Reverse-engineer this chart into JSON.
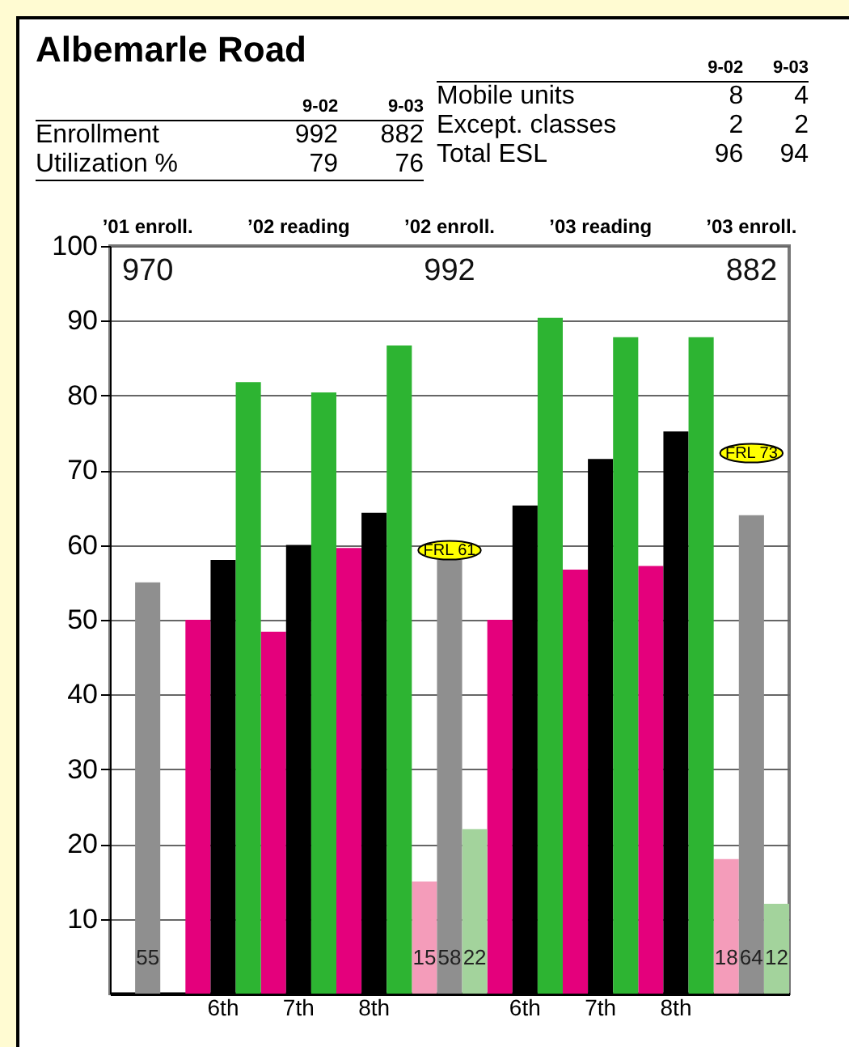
{
  "chart_data": [
    {
      "type": "other",
      "title": "Albemarle Road",
      "annotations": [
        "9-02",
        "9-03",
        "Enrollment",
        "992",
        "882",
        "Utilization %",
        "79",
        "76",
        "9-02",
        "9-03",
        "Mobile units",
        "8",
        "4",
        "Except. classes",
        "2",
        "2",
        "Total ESL",
        "96",
        "94"
      ]
    },
    {
      "type": "bar",
      "categories": [
        null,
        "6th",
        "7th",
        "8th",
        null,
        "6th",
        "7th",
        "8th",
        null
      ],
      "series": [
        {
          "values": [
            null,
            50,
            48.4,
            59.6,
            15,
            50,
            56.7,
            57.2,
            18
          ],
          "colors": [
            "#f49cba",
            "#e4007c",
            "#e4007c",
            "#e4007c",
            "#f49cba",
            "#e4007c",
            "#e4007c",
            "#e4007c",
            "#f49cba"
          ],
          "value_labels": [
            null,
            null,
            null,
            null,
            "15",
            null,
            null,
            null,
            "18"
          ]
        },
        {
          "values": [
            55,
            58,
            60,
            64.3,
            58,
            65.3,
            71.5,
            75.2,
            64
          ],
          "colors": [
            "#8f8f8f",
            "#000000",
            "#000000",
            "#000000",
            "#8f8f8f",
            "#000000",
            "#000000",
            "#000000",
            "#8f8f8f"
          ],
          "value_labels": [
            "55",
            null,
            null,
            null,
            "58",
            null,
            null,
            null,
            "64"
          ]
        },
        {
          "values": [
            null,
            81.8,
            80.4,
            86.7,
            22,
            90.4,
            87.8,
            87.8,
            12
          ],
          "colors": [
            "#a3d39c",
            "#2db432",
            "#2db432",
            "#2db432",
            "#a3d39c",
            "#2db432",
            "#2db432",
            "#2db432",
            "#a3d39c"
          ],
          "value_labels": [
            null,
            null,
            null,
            null,
            "22",
            null,
            null,
            null,
            "12"
          ]
        }
      ],
      "ylim": [
        0,
        100
      ],
      "yticks": [
        10,
        20,
        30,
        40,
        50,
        60,
        70,
        80,
        90,
        100
      ],
      "grid": "y",
      "annotations": [
        "’01 enroll.",
        "’02 reading",
        "’02 enroll.",
        "’03 reading",
        "’03 enroll.",
        "970",
        "992",
        "882",
        "FRL 61",
        "FRL 73"
      ]
    }
  ]
}
